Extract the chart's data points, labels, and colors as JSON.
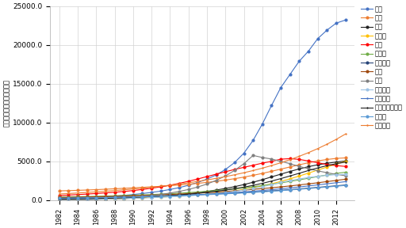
{
  "years": [
    1982,
    1983,
    1984,
    1985,
    1986,
    1987,
    1988,
    1989,
    1990,
    1991,
    1992,
    1993,
    1994,
    1995,
    1996,
    1997,
    1998,
    1999,
    2000,
    2001,
    2002,
    2003,
    2004,
    2005,
    2006,
    2007,
    2008,
    2009,
    2010,
    2011,
    2012,
    2013
  ],
  "series": [
    {
      "name": "中国",
      "color": "#4472C4",
      "marker": "o",
      "values": [
        200,
        230,
        270,
        320,
        370,
        440,
        520,
        620,
        730,
        860,
        1000,
        1170,
        1380,
        1620,
        1920,
        2280,
        2720,
        3250,
        3950,
        4850,
        6050,
        7700,
        9800,
        12200,
        14500,
        16200,
        17900,
        19200,
        20800,
        21900,
        22800,
        23200
      ]
    },
    {
      "name": "米国",
      "color": "#ED7D31",
      "marker": "o",
      "values": [
        1200,
        1230,
        1270,
        1310,
        1360,
        1410,
        1470,
        1530,
        1590,
        1650,
        1720,
        1790,
        1870,
        1960,
        2060,
        2170,
        2290,
        2430,
        2590,
        2770,
        2970,
        3200,
        3450,
        3720,
        4000,
        4280,
        4560,
        4820,
        5060,
        5240,
        5380,
        5450
      ]
    },
    {
      "name": "韓国",
      "color": "#222222",
      "marker": "o",
      "values": [
        50,
        60,
        75,
        90,
        110,
        135,
        165,
        205,
        255,
        315,
        385,
        465,
        560,
        675,
        810,
        965,
        1130,
        1310,
        1510,
        1740,
        2010,
        2310,
        2640,
        3000,
        3350,
        3700,
        4030,
        4320,
        4560,
        4750,
        4910,
        5050
      ]
    },
    {
      "name": "インド",
      "color": "#FFC000",
      "marker": "o",
      "values": [
        100,
        110,
        125,
        140,
        158,
        180,
        205,
        235,
        270,
        310,
        355,
        405,
        462,
        528,
        605,
        695,
        798,
        917,
        1055,
        1213,
        1393,
        1600,
        1838,
        2110,
        2415,
        2750,
        3110,
        3490,
        3880,
        4270,
        4650,
        5000
      ]
    },
    {
      "name": "日本",
      "color": "#FF0000",
      "marker": "o",
      "values": [
        600,
        660,
        720,
        790,
        860,
        940,
        1020,
        1120,
        1240,
        1380,
        1540,
        1720,
        1930,
        2170,
        2440,
        2730,
        3040,
        3350,
        3660,
        3960,
        4230,
        4500,
        4770,
        5000,
        5280,
        5350,
        5250,
        5050,
        4820,
        4600,
        4450,
        4350
      ]
    },
    {
      "name": "ドイツ",
      "color": "#70AD47",
      "marker": "o",
      "values": [
        400,
        420,
        445,
        472,
        500,
        530,
        562,
        598,
        638,
        682,
        730,
        782,
        840,
        904,
        976,
        1055,
        1143,
        1240,
        1347,
        1464,
        1592,
        1732,
        1885,
        2051,
        2230,
        2420,
        2620,
        2828,
        3040,
        3250,
        3450,
        3600
      ]
    },
    {
      "name": "フランス",
      "color": "#264478",
      "marker": "o",
      "values": [
        300,
        315,
        332,
        350,
        370,
        390,
        412,
        436,
        462,
        490,
        520,
        552,
        586,
        623,
        663,
        706,
        752,
        802,
        856,
        914,
        976,
        1043,
        1115,
        1192,
        1274,
        1361,
        1453,
        1550,
        1651,
        1754,
        1854,
        1950
      ]
    },
    {
      "name": "英国",
      "color": "#9E480E",
      "marker": "o",
      "values": [
        350,
        370,
        393,
        417,
        444,
        472,
        502,
        535,
        570,
        608,
        649,
        694,
        742,
        794,
        851,
        912,
        978,
        1049,
        1126,
        1208,
        1296,
        1390,
        1491,
        1599,
        1714,
        1836,
        1965,
        2101,
        2244,
        2393,
        2545,
        2700
      ]
    },
    {
      "name": "台湾",
      "color": "#7F7F7F",
      "marker": "o",
      "values": [
        80,
        98,
        120,
        147,
        180,
        221,
        271,
        332,
        407,
        499,
        612,
        750,
        920,
        1128,
        1382,
        1695,
        2078,
        2548,
        3124,
        3832,
        4700,
        5764,
        5500,
        5300,
        5000,
        4700,
        4350,
        4050,
        3780,
        3540,
        3330,
        3150
      ]
    },
    {
      "name": "スペイン",
      "color": "#9DC3E6",
      "marker": "o",
      "values": [
        80,
        92,
        106,
        122,
        140,
        161,
        185,
        213,
        245,
        282,
        324,
        373,
        429,
        494,
        568,
        653,
        751,
        864,
        994,
        1143,
        1314,
        1511,
        1737,
        1996,
        2296,
        2520,
        2730,
        2920,
        3080,
        3200,
        3280,
        3330
      ]
    },
    {
      "name": "イタリア",
      "color": "#4472C4",
      "marker": "+",
      "values": [
        220,
        238,
        257,
        278,
        300,
        325,
        351,
        380,
        411,
        445,
        481,
        521,
        564,
        611,
        661,
        716,
        775,
        840,
        910,
        986,
        1068,
        1157,
        1253,
        1356,
        1466,
        1583,
        1706,
        1835,
        1970,
        2108,
        2248,
        2385
      ]
    },
    {
      "name": "オーストラリア",
      "color": "#222222",
      "marker": "+",
      "values": [
        130,
        148,
        168,
        191,
        217,
        247,
        281,
        319,
        363,
        413,
        469,
        533,
        606,
        688,
        782,
        888,
        1009,
        1146,
        1301,
        1478,
        1679,
        1907,
        2168,
        2460,
        2780,
        3120,
        3470,
        3820,
        4150,
        4450,
        4700,
        4900
      ]
    },
    {
      "name": "カナダ",
      "color": "#5B9BD5",
      "marker": "o",
      "values": [
        250,
        265,
        282,
        300,
        320,
        341,
        364,
        388,
        415,
        443,
        474,
        507,
        542,
        580,
        621,
        665,
        712,
        763,
        817,
        875,
        937,
        1004,
        1075,
        1151,
        1231,
        1315,
        1404,
        1497,
        1594,
        1694,
        1796,
        1900
      ]
    },
    {
      "name": "オランダ",
      "color": "#ED7D31",
      "marker": "+",
      "values": [
        800,
        860,
        925,
        995,
        1070,
        1152,
        1240,
        1335,
        1437,
        1548,
        1667,
        1795,
        1933,
        2082,
        2244,
        2419,
        2608,
        2812,
        3034,
        3274,
        3534,
        3817,
        4124,
        4458,
        4822,
        5219,
        5652,
        6124,
        6641,
        7208,
        7831,
        8515
      ]
    }
  ],
  "ylabel": "論文数（３年移動平均値）",
  "ylim": [
    0,
    25000
  ],
  "yticks": [
    0,
    5000,
    10000,
    15000,
    20000,
    25000
  ],
  "ytick_labels": [
    "0.0",
    "5000.0",
    "10000.0",
    "15000.0",
    "20000.0",
    "25000.0"
  ],
  "xlim": [
    1981,
    2014
  ],
  "background_color": "#ffffff",
  "grid_color": "#d3d3d3",
  "spine_color": "#aaaaaa"
}
